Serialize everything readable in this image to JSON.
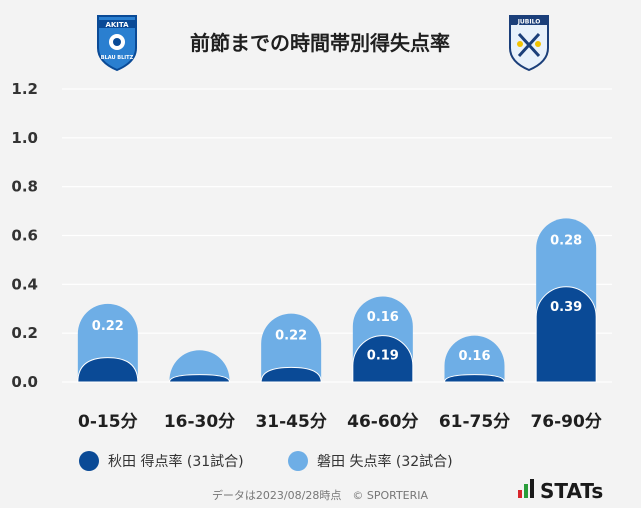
{
  "title": "前節までの時間帯別得失点率",
  "footer": "データは2023/08/28時点　© SPORTERIA",
  "brand": "STATs",
  "logos": {
    "left": {
      "text_top": "AKITA",
      "text_bottom": "BLAU BLITZ"
    },
    "right": {
      "text": "JUBILO"
    }
  },
  "colors": {
    "akita": "#0a4a96",
    "iwata": "#6eaee6",
    "background": "#f3f3f3",
    "grid": "#ffffff"
  },
  "chart_data": {
    "type": "bar",
    "stacked": true,
    "categories": [
      "0-15分",
      "16-30分",
      "31-45分",
      "46-60分",
      "61-75分",
      "76-90分"
    ],
    "series": [
      {
        "name": "秋田 得点率 (31試合)",
        "values": [
          0.1,
          0.03,
          0.06,
          0.19,
          0.03,
          0.39
        ],
        "shown_labels": [
          "",
          "",
          "",
          "0.19",
          "",
          "0.39"
        ]
      },
      {
        "name": "磐田 失点率 (32試合)",
        "values": [
          0.22,
          0.1,
          0.22,
          0.16,
          0.16,
          0.28
        ],
        "shown_labels": [
          "0.22",
          "",
          "0.22",
          "0.16",
          "0.16",
          "0.28"
        ]
      }
    ],
    "yticks": [
      "0.0",
      "0.2",
      "0.4",
      "0.6",
      "0.8",
      "1.0",
      "1.2"
    ],
    "ylim": [
      0,
      1.2
    ],
    "grid": true,
    "legend_position": "bottom-left"
  }
}
